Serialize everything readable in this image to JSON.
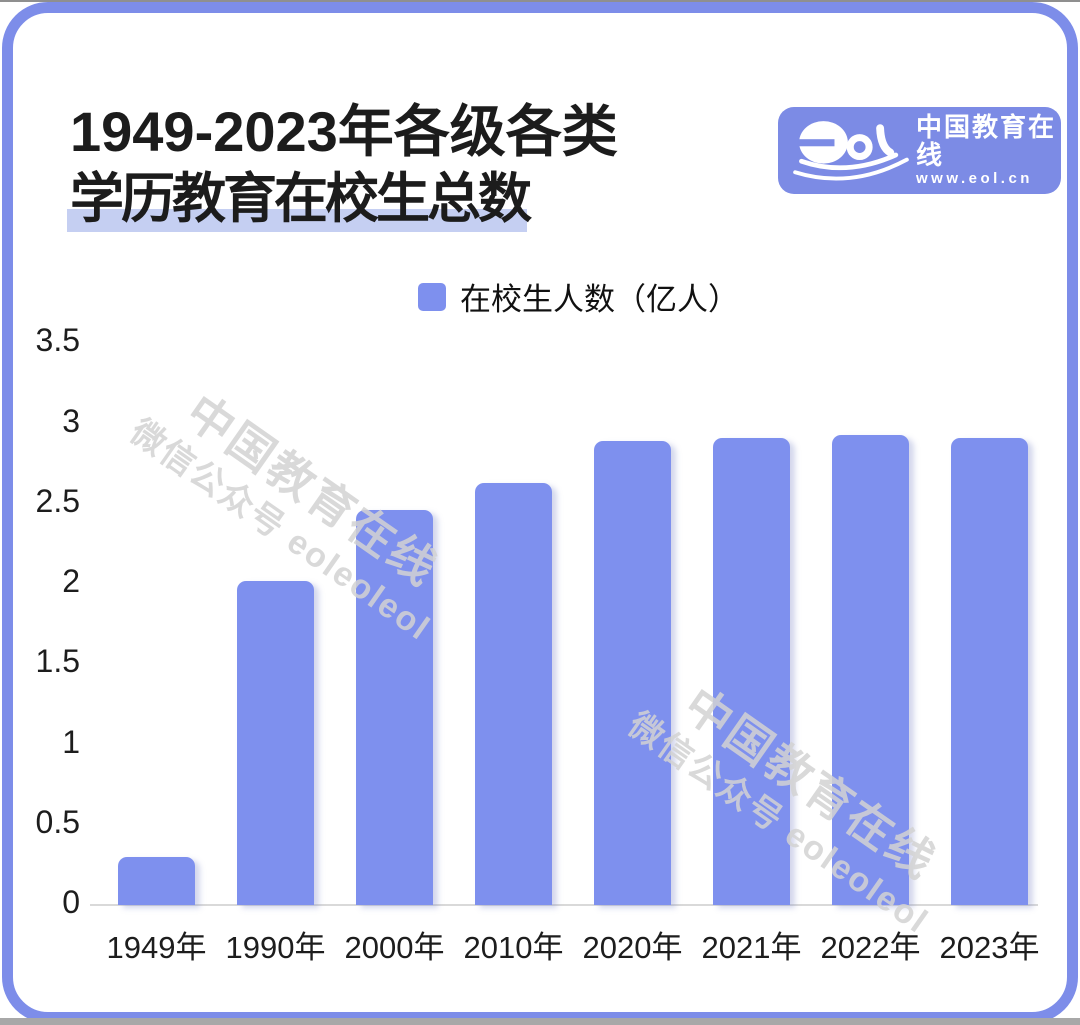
{
  "header": {
    "title_line1": "1949-2023年各级各类",
    "title_line2": "学历教育在校生总数"
  },
  "logo": {
    "wordmark": "eol",
    "brand_cn": "中国教育在线",
    "website": "www.eol.cn"
  },
  "legend": {
    "label": "在校生人数（亿人）"
  },
  "watermark": {
    "line1": "中国教育在线",
    "line2": "微信公众号 eoleoleol"
  },
  "colors": {
    "bar": "#7E90EE",
    "frame_border": "#7D8DE9",
    "logo_bg": "#7C8BE5",
    "title_highlight": "#C5CFF2",
    "axis_line": "#D9D9D9",
    "text": "#1C1C1C",
    "watermark": "rgba(210,210,210,0.85)"
  },
  "chart_data": {
    "type": "bar",
    "title": "1949-2023年各级各类学历教育在校生总数",
    "legend_entries": [
      "在校生人数（亿人）"
    ],
    "legend_position": "top",
    "categories": [
      "1949年",
      "1990年",
      "2000年",
      "2010年",
      "2020年",
      "2021年",
      "2022年",
      "2023年"
    ],
    "series": [
      {
        "name": "在校生人数（亿人）",
        "values": [
          0.3,
          2.02,
          2.46,
          2.63,
          2.89,
          2.91,
          2.93,
          2.91
        ]
      }
    ],
    "unit": "亿人",
    "xlabel": "",
    "ylabel": "",
    "ylim": [
      0,
      3.5
    ],
    "yticks": [
      3.5,
      3,
      2.5,
      2,
      1.5,
      1,
      0.5,
      0
    ],
    "grid": false
  }
}
